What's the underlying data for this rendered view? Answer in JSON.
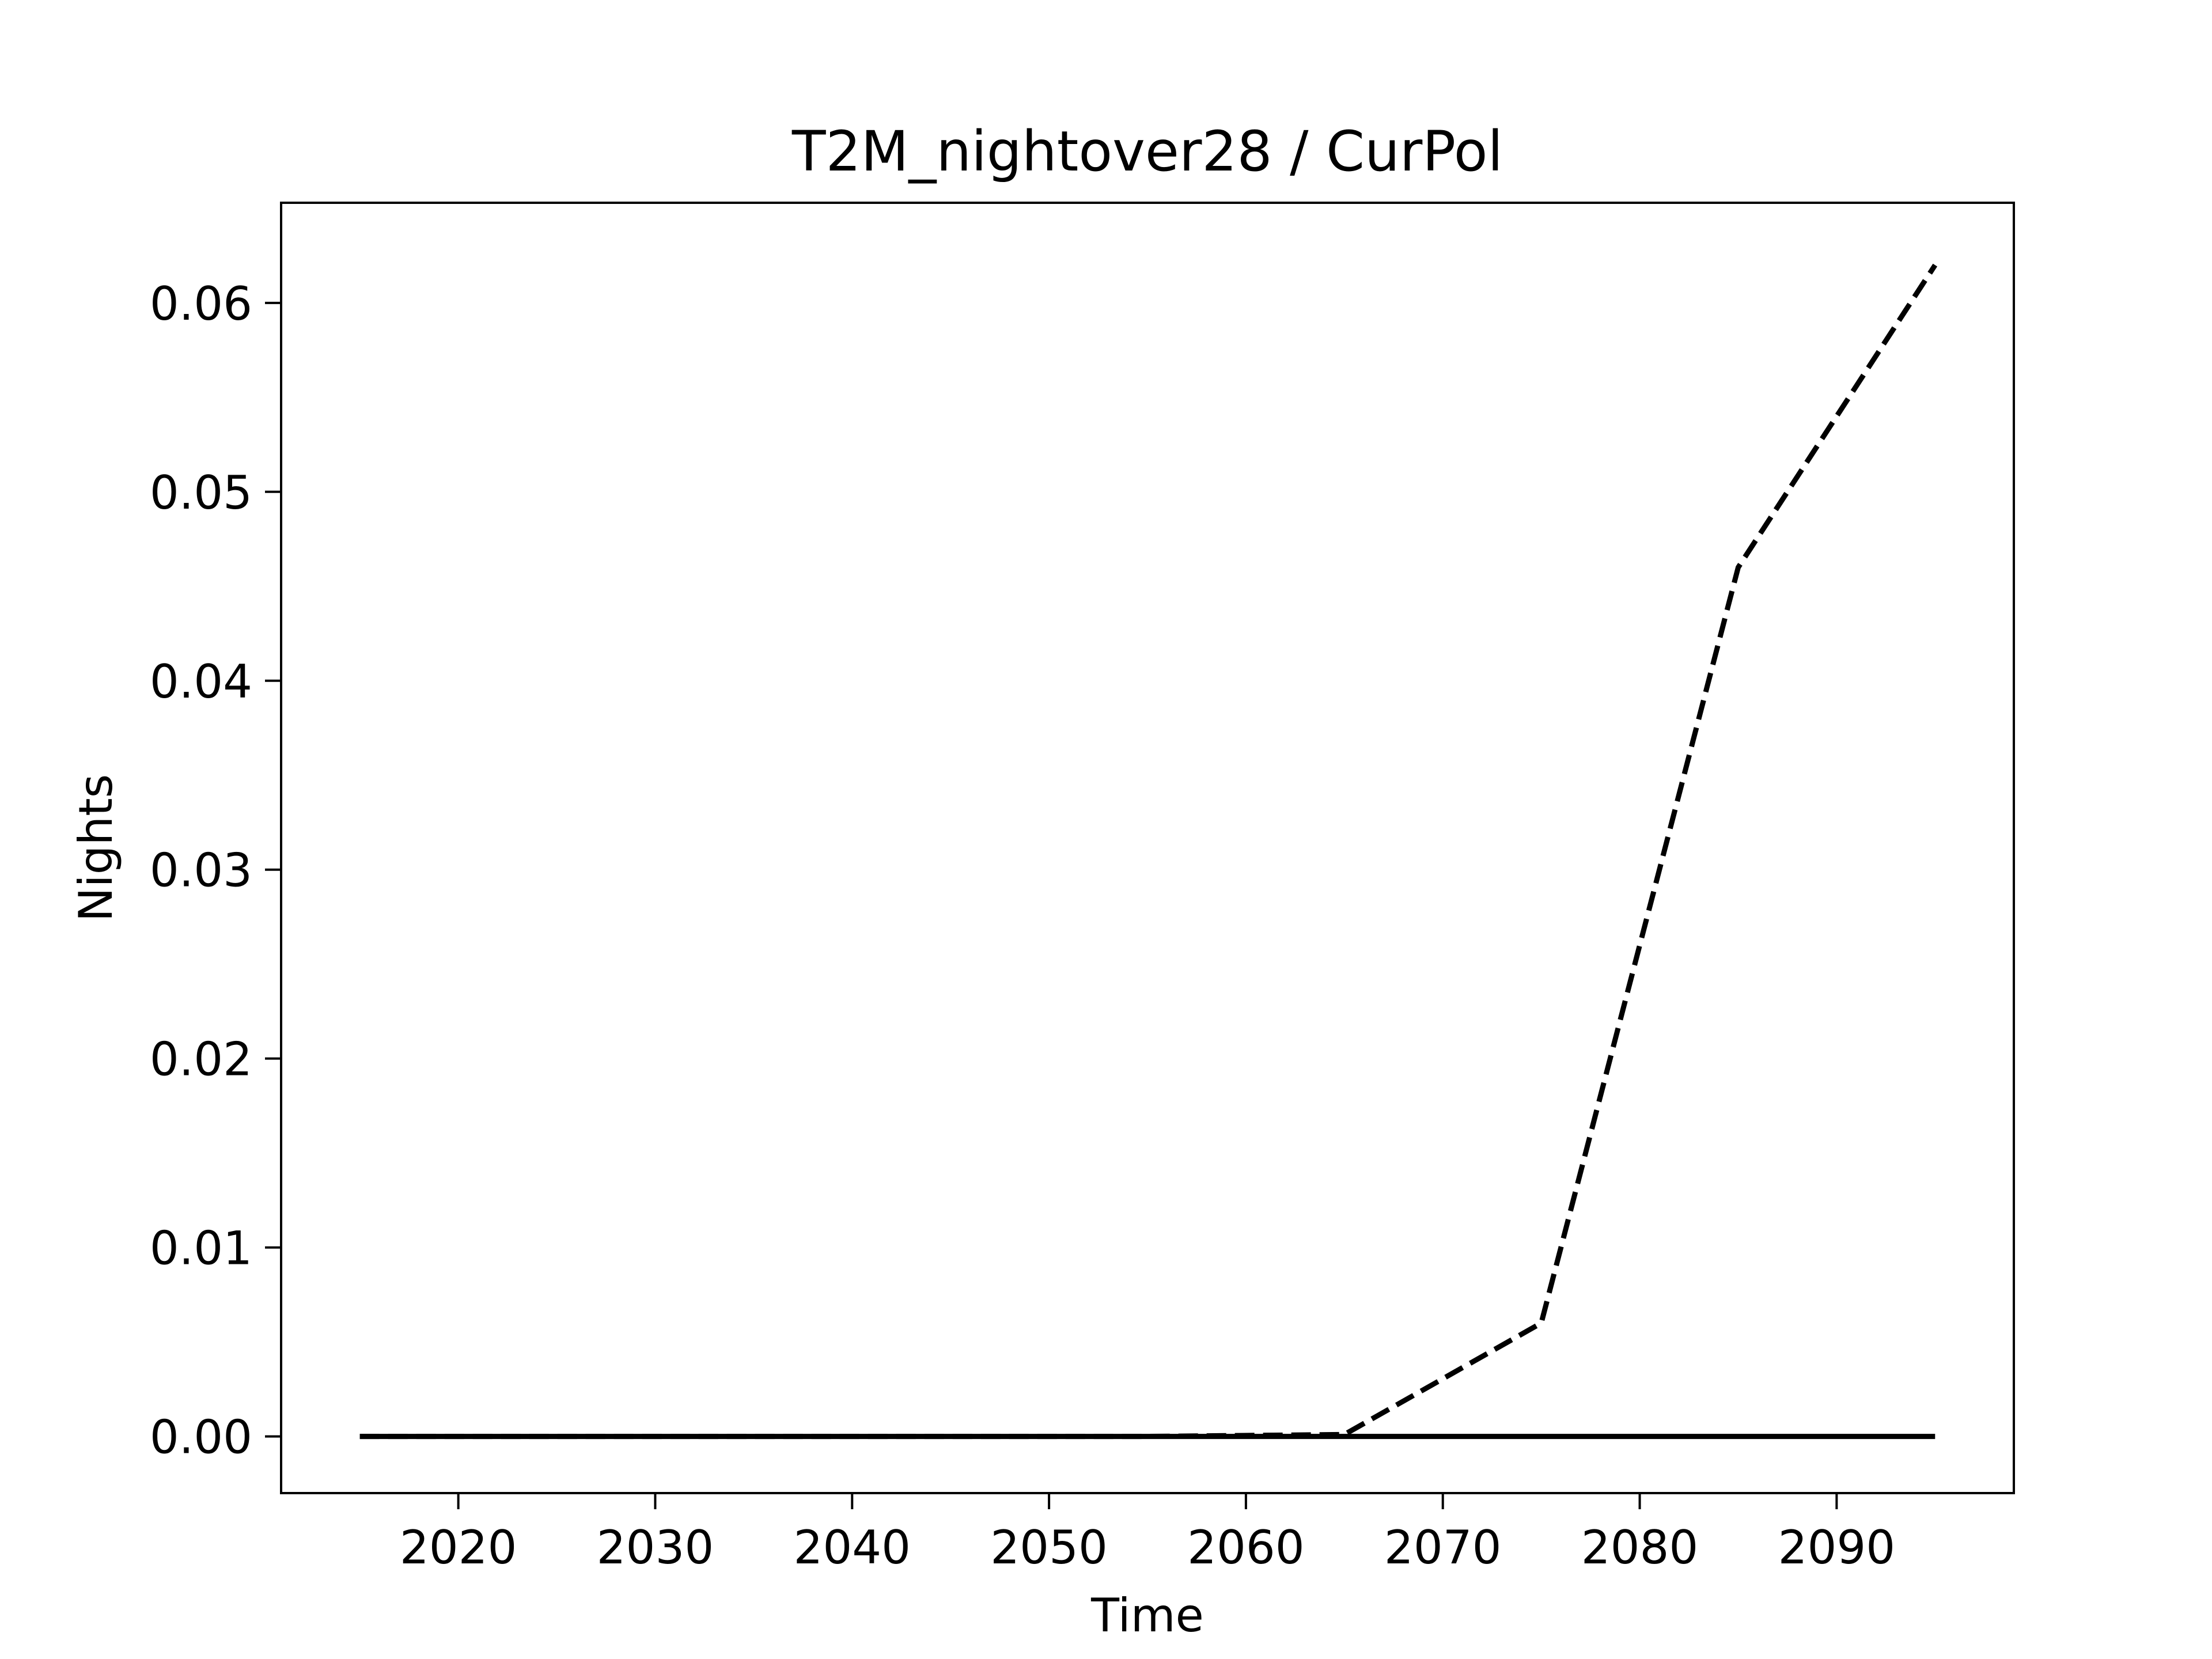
{
  "chart_data": {
    "type": "line",
    "title": "T2M_nightover28 / CurPol",
    "xlabel": "Time",
    "ylabel": "Nights",
    "xlim": [
      2011,
      2099
    ],
    "ylim": [
      -0.003,
      0.0653
    ],
    "xticks": [
      2020,
      2030,
      2040,
      2050,
      2060,
      2070,
      2080,
      2090
    ],
    "yticks": [
      0.0,
      0.01,
      0.02,
      0.03,
      0.04,
      0.05,
      0.06
    ],
    "ytick_labels": [
      "0.00",
      "0.01",
      "0.02",
      "0.03",
      "0.04",
      "0.05",
      "0.06"
    ],
    "grid": false,
    "legend": "none",
    "series": [
      {
        "style": "dashed",
        "color": "#000000",
        "x": [
          2015,
          2025,
          2035,
          2045,
          2055,
          2065,
          2075,
          2085,
          2095
        ],
        "y": [
          0.0,
          0.0,
          0.0,
          0.0,
          0.0,
          0.0001,
          0.006,
          0.046,
          0.062
        ]
      },
      {
        "style": "solid",
        "color": "#000000",
        "x": [
          2015,
          2025,
          2035,
          2045,
          2055,
          2065,
          2075,
          2085,
          2095
        ],
        "y": [
          0.0,
          0.0,
          0.0,
          0.0,
          0.0,
          0.0,
          0.0,
          0.0,
          0.0
        ]
      }
    ]
  }
}
